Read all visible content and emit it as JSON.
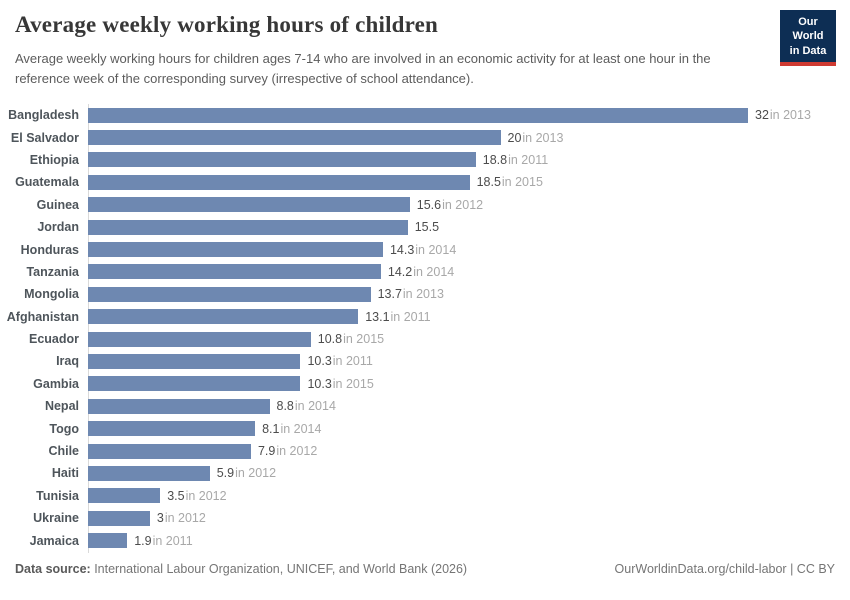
{
  "header": {
    "title": "Average weekly working hours of children",
    "subtitle": "Average weekly working hours for children ages 7-14 who are involved in an economic activity for at least one hour in the reference week of the corresponding survey (irrespective of school attendance).",
    "logo": {
      "line1": "Our World",
      "line2": "in Data"
    }
  },
  "chart_data": {
    "type": "bar",
    "orientation": "horizontal",
    "title": "Average weekly working hours of children",
    "xlabel": "",
    "ylabel": "",
    "xlim": [
      0,
      32
    ],
    "grid": false,
    "legend": "none",
    "bar_color": "#6e88b1",
    "year_annotation_prefix": "in",
    "series": [
      {
        "country": "Bangladesh",
        "value": 32,
        "year": "2013"
      },
      {
        "country": "El Salvador",
        "value": 20,
        "year": "2013"
      },
      {
        "country": "Ethiopia",
        "value": 18.8,
        "year": "2011"
      },
      {
        "country": "Guatemala",
        "value": 18.5,
        "year": "2015"
      },
      {
        "country": "Guinea",
        "value": 15.6,
        "year": "2012"
      },
      {
        "country": "Jordan",
        "value": 15.5,
        "year": null
      },
      {
        "country": "Honduras",
        "value": 14.3,
        "year": "2014"
      },
      {
        "country": "Tanzania",
        "value": 14.2,
        "year": "2014"
      },
      {
        "country": "Mongolia",
        "value": 13.7,
        "year": "2013"
      },
      {
        "country": "Afghanistan",
        "value": 13.1,
        "year": "2011"
      },
      {
        "country": "Ecuador",
        "value": 10.8,
        "year": "2015"
      },
      {
        "country": "Iraq",
        "value": 10.3,
        "year": "2011"
      },
      {
        "country": "Gambia",
        "value": 10.3,
        "year": "2015"
      },
      {
        "country": "Nepal",
        "value": 8.8,
        "year": "2014"
      },
      {
        "country": "Togo",
        "value": 8.1,
        "year": "2014"
      },
      {
        "country": "Chile",
        "value": 7.9,
        "year": "2012"
      },
      {
        "country": "Haiti",
        "value": 5.9,
        "year": "2012"
      },
      {
        "country": "Tunisia",
        "value": 3.5,
        "year": "2012"
      },
      {
        "country": "Ukraine",
        "value": 3,
        "year": "2012"
      },
      {
        "country": "Jamaica",
        "value": 1.9,
        "year": "2011"
      }
    ]
  },
  "footer": {
    "source_label": "Data source:",
    "source_text": " International Labour Organization, UNICEF, and World Bank (2026)",
    "right_text": "OurWorldinData.org/child-labor | CC BY"
  }
}
